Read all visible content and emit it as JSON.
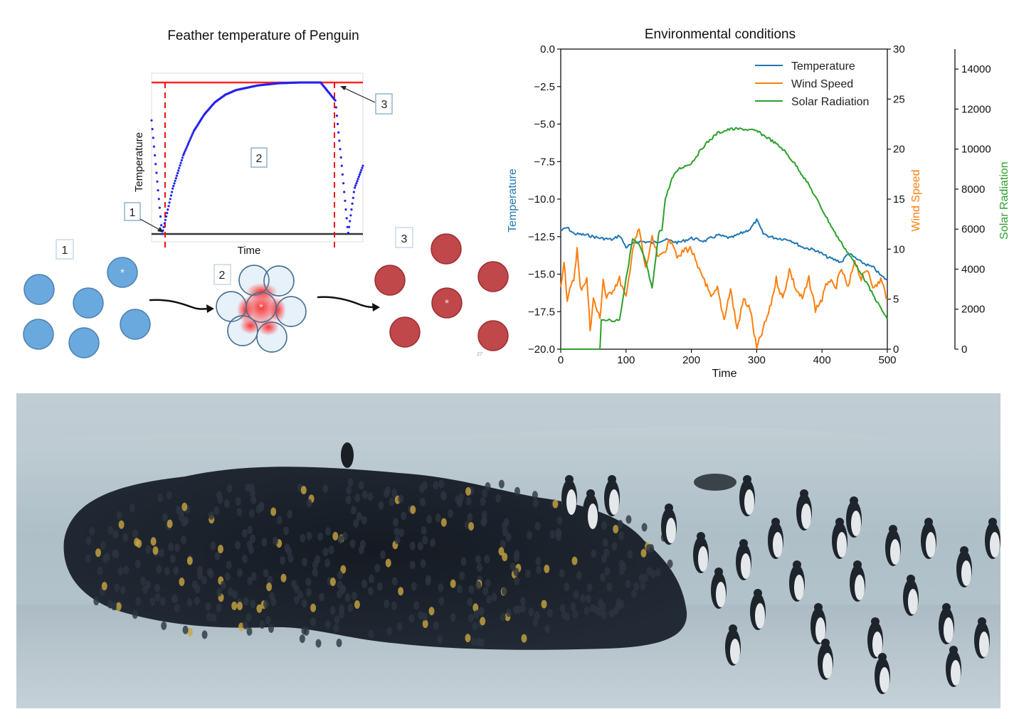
{
  "feather_panel": {
    "title": "Feather temperature of Penguin",
    "xlabel": "Time",
    "ylabel": "Temperature",
    "callouts": [
      "1",
      "2",
      "3"
    ],
    "phase_labels": [
      "1",
      "2",
      "3"
    ],
    "center_marker": "*",
    "page_mark": "27",
    "colors": {
      "curve": "#2222ee",
      "upper_line": "#ff2222",
      "lower_line": "#333333",
      "cold": "#6aa9de",
      "warm": "#c0474a"
    }
  },
  "chart_data": [
    {
      "type": "line",
      "title": "Feather temperature of Penguin",
      "xlabel": "Time",
      "ylabel": "Temperature",
      "series": [
        {
          "values": [
            [
              0,
              0.75
            ],
            [
              0.05,
              0.0
            ],
            [
              0.1,
              0.3
            ],
            [
              0.15,
              0.52
            ],
            [
              0.2,
              0.68
            ],
            [
              0.25,
              0.79
            ],
            [
              0.3,
              0.87
            ],
            [
              0.35,
              0.92
            ],
            [
              0.4,
              0.95
            ],
            [
              0.5,
              0.98
            ],
            [
              0.6,
              0.995
            ],
            [
              0.7,
              1.0
            ],
            [
              0.8,
              1.0
            ],
            [
              0.87,
              0.88
            ],
            [
              0.9,
              0.45
            ],
            [
              0.93,
              0.0
            ],
            [
              0.96,
              0.3
            ],
            [
              1.0,
              0.45
            ]
          ]
        }
      ]
    },
    {
      "type": "line",
      "title": "Environmental conditions",
      "xlabel": "Time",
      "xlim": [
        0,
        500
      ],
      "x_ticks": [
        "0",
        "100",
        "200",
        "300",
        "400",
        "500"
      ],
      "legend_position": "top-right",
      "axes": [
        {
          "label": "Temperature",
          "side": "left",
          "color": "#1f77b4",
          "ylim": [
            -20,
            0
          ],
          "ticks": [
            "0.0",
            "−2.5",
            "−5.0",
            "−7.5",
            "−10.0",
            "−12.5",
            "−15.0",
            "−17.5",
            "−20.0"
          ]
        },
        {
          "label": "Wind Speed",
          "side": "right",
          "color": "#ff7f0e",
          "ylim": [
            0,
            30
          ],
          "ticks": [
            "0",
            "5",
            "10",
            "15",
            "20",
            "25",
            "30"
          ]
        },
        {
          "label": "Solar Radiation",
          "side": "right-outer",
          "color": "#2ca02c",
          "ylim": [
            0,
            15000
          ],
          "ticks": [
            "0",
            "2000",
            "4000",
            "6000",
            "8000",
            "10000",
            "12000",
            "14000"
          ]
        }
      ],
      "series": [
        {
          "name": "Temperature",
          "axis": 0,
          "color": "#1f77b4",
          "points": [
            [
              0,
              -12.1
            ],
            [
              10,
              -11.9
            ],
            [
              20,
              -12.3
            ],
            [
              40,
              -12.4
            ],
            [
              60,
              -12.6
            ],
            [
              80,
              -12.7
            ],
            [
              90,
              -12.4
            ],
            [
              100,
              -13.2
            ],
            [
              120,
              -12.8
            ],
            [
              140,
              -12.9
            ],
            [
              160,
              -12.7
            ],
            [
              180,
              -12.9
            ],
            [
              200,
              -12.6
            ],
            [
              220,
              -12.8
            ],
            [
              240,
              -12.4
            ],
            [
              260,
              -12.6
            ],
            [
              280,
              -12.2
            ],
            [
              290,
              -12.0
            ],
            [
              300,
              -11.4
            ],
            [
              310,
              -12.3
            ],
            [
              320,
              -12.5
            ],
            [
              330,
              -12.6
            ],
            [
              350,
              -12.7
            ],
            [
              370,
              -13.2
            ],
            [
              390,
              -13.4
            ],
            [
              410,
              -13.9
            ],
            [
              430,
              -14.2
            ],
            [
              440,
              -13.6
            ],
            [
              450,
              -13.9
            ],
            [
              460,
              -14.2
            ],
            [
              480,
              -14.6
            ],
            [
              490,
              -15.1
            ],
            [
              500,
              -15.4
            ]
          ]
        },
        {
          "name": "Wind Speed",
          "axis": 1,
          "color": "#ff7f0e",
          "points": [
            [
              0,
              6
            ],
            [
              5,
              9
            ],
            [
              10,
              5
            ],
            [
              20,
              7
            ],
            [
              25,
              10
            ],
            [
              30,
              6
            ],
            [
              40,
              7
            ],
            [
              45,
              2
            ],
            [
              50,
              5
            ],
            [
              60,
              3
            ],
            [
              65,
              7
            ],
            [
              70,
              5
            ],
            [
              80,
              6
            ],
            [
              90,
              7
            ],
            [
              100,
              5
            ],
            [
              110,
              10
            ],
            [
              120,
              12
            ],
            [
              130,
              8
            ],
            [
              140,
              11
            ],
            [
              150,
              9
            ],
            [
              160,
              10
            ],
            [
              170,
              11
            ],
            [
              180,
              9
            ],
            [
              190,
              10
            ],
            [
              200,
              10
            ],
            [
              210,
              8
            ],
            [
              220,
              7
            ],
            [
              230,
              5
            ],
            [
              240,
              6
            ],
            [
              250,
              3
            ],
            [
              260,
              6
            ],
            [
              270,
              2
            ],
            [
              280,
              5
            ],
            [
              290,
              4
            ],
            [
              300,
              0
            ],
            [
              310,
              2
            ],
            [
              320,
              4
            ],
            [
              330,
              7
            ],
            [
              340,
              5
            ],
            [
              350,
              8
            ],
            [
              360,
              6
            ],
            [
              370,
              5
            ],
            [
              380,
              7
            ],
            [
              390,
              4
            ],
            [
              400,
              5
            ],
            [
              410,
              7
            ],
            [
              420,
              6
            ],
            [
              430,
              8
            ],
            [
              440,
              6
            ],
            [
              450,
              9
            ],
            [
              460,
              7
            ],
            [
              470,
              8
            ],
            [
              480,
              6
            ],
            [
              490,
              7
            ],
            [
              500,
              5
            ]
          ]
        },
        {
          "name": "Solar Radiation",
          "axis": 2,
          "color": "#2ca02c",
          "points": [
            [
              0,
              0
            ],
            [
              60,
              0
            ],
            [
              62,
              1400
            ],
            [
              70,
              1500
            ],
            [
              80,
              1400
            ],
            [
              90,
              1500
            ],
            [
              100,
              3500
            ],
            [
              110,
              5500
            ],
            [
              120,
              5200
            ],
            [
              130,
              4400
            ],
            [
              140,
              3000
            ],
            [
              150,
              5800
            ],
            [
              155,
              6000
            ],
            [
              160,
              7500
            ],
            [
              170,
              8500
            ],
            [
              180,
              9000
            ],
            [
              200,
              9300
            ],
            [
              220,
              10200
            ],
            [
              240,
              10800
            ],
            [
              260,
              11000
            ],
            [
              280,
              11000
            ],
            [
              300,
              10900
            ],
            [
              320,
              10500
            ],
            [
              340,
              10000
            ],
            [
              360,
              9200
            ],
            [
              380,
              8200
            ],
            [
              400,
              7000
            ],
            [
              420,
              5800
            ],
            [
              440,
              4800
            ],
            [
              460,
              3800
            ],
            [
              480,
              2600
            ],
            [
              500,
              1500
            ]
          ]
        }
      ]
    }
  ]
}
